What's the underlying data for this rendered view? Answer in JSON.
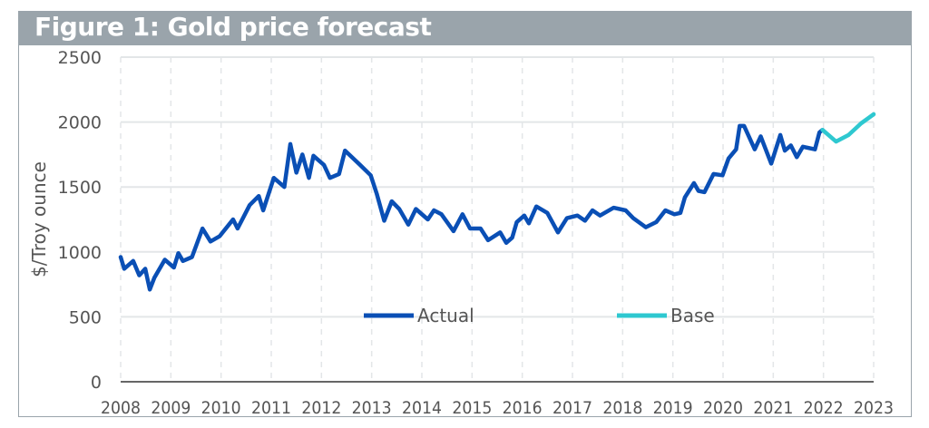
{
  "chart_data": {
    "type": "line",
    "title": "Figure 1: Gold price forecast",
    "xlabel": "",
    "ylabel": "$/Troy ounce",
    "xlim": [
      2008,
      2023
    ],
    "ylim": [
      0,
      2500
    ],
    "yticks": [
      0,
      500,
      1000,
      1500,
      2000,
      2500
    ],
    "xticks": [
      "2008",
      "2009",
      "2010",
      "2011",
      "2012",
      "2013",
      "2014",
      "2015",
      "2016",
      "2017",
      "2018",
      "2019",
      "2020",
      "2021",
      "2022",
      "2023"
    ],
    "grid": {
      "horizontal": "solid",
      "vertical": "dashed"
    },
    "legend_position": "bottom-center-inside",
    "series": [
      {
        "name": "Actual",
        "color": "#0a4fb5",
        "points": [
          [
            2008.0,
            960
          ],
          [
            2008.07,
            870
          ],
          [
            2008.25,
            930
          ],
          [
            2008.37,
            820
          ],
          [
            2008.49,
            870
          ],
          [
            2008.58,
            710
          ],
          [
            2008.67,
            800
          ],
          [
            2008.88,
            940
          ],
          [
            2009.06,
            880
          ],
          [
            2009.15,
            990
          ],
          [
            2009.24,
            930
          ],
          [
            2009.42,
            960
          ],
          [
            2009.63,
            1180
          ],
          [
            2009.79,
            1080
          ],
          [
            2009.97,
            1120
          ],
          [
            2010.24,
            1250
          ],
          [
            2010.33,
            1180
          ],
          [
            2010.57,
            1360
          ],
          [
            2010.75,
            1430
          ],
          [
            2010.84,
            1320
          ],
          [
            2011.05,
            1570
          ],
          [
            2011.26,
            1500
          ],
          [
            2011.38,
            1830
          ],
          [
            2011.5,
            1610
          ],
          [
            2011.62,
            1750
          ],
          [
            2011.75,
            1570
          ],
          [
            2011.84,
            1740
          ],
          [
            2012.05,
            1670
          ],
          [
            2012.17,
            1570
          ],
          [
            2012.35,
            1600
          ],
          [
            2012.47,
            1780
          ],
          [
            2012.77,
            1670
          ],
          [
            2012.98,
            1590
          ],
          [
            2013.1,
            1450
          ],
          [
            2013.25,
            1240
          ],
          [
            2013.4,
            1390
          ],
          [
            2013.55,
            1330
          ],
          [
            2013.73,
            1210
          ],
          [
            2013.88,
            1330
          ],
          [
            2014.12,
            1250
          ],
          [
            2014.24,
            1320
          ],
          [
            2014.39,
            1290
          ],
          [
            2014.63,
            1160
          ],
          [
            2014.81,
            1290
          ],
          [
            2014.96,
            1180
          ],
          [
            2015.17,
            1180
          ],
          [
            2015.32,
            1090
          ],
          [
            2015.56,
            1150
          ],
          [
            2015.68,
            1070
          ],
          [
            2015.8,
            1110
          ],
          [
            2015.89,
            1230
          ],
          [
            2016.04,
            1280
          ],
          [
            2016.13,
            1220
          ],
          [
            2016.28,
            1350
          ],
          [
            2016.5,
            1300
          ],
          [
            2016.71,
            1150
          ],
          [
            2016.89,
            1260
          ],
          [
            2017.1,
            1280
          ],
          [
            2017.25,
            1240
          ],
          [
            2017.4,
            1320
          ],
          [
            2017.55,
            1280
          ],
          [
            2017.82,
            1340
          ],
          [
            2018.06,
            1320
          ],
          [
            2018.21,
            1260
          ],
          [
            2018.46,
            1190
          ],
          [
            2018.67,
            1230
          ],
          [
            2018.85,
            1320
          ],
          [
            2019.03,
            1290
          ],
          [
            2019.15,
            1300
          ],
          [
            2019.24,
            1420
          ],
          [
            2019.42,
            1530
          ],
          [
            2019.51,
            1470
          ],
          [
            2019.63,
            1460
          ],
          [
            2019.81,
            1600
          ],
          [
            2019.99,
            1590
          ],
          [
            2020.11,
            1720
          ],
          [
            2020.26,
            1790
          ],
          [
            2020.33,
            1970
          ],
          [
            2020.42,
            1970
          ],
          [
            2020.63,
            1790
          ],
          [
            2020.75,
            1890
          ],
          [
            2020.96,
            1680
          ],
          [
            2021.14,
            1900
          ],
          [
            2021.23,
            1780
          ],
          [
            2021.35,
            1820
          ],
          [
            2021.47,
            1730
          ],
          [
            2021.59,
            1810
          ],
          [
            2021.83,
            1790
          ],
          [
            2021.92,
            1920
          ],
          [
            2021.98,
            1940
          ]
        ]
      },
      {
        "name": "Base",
        "color": "#2ec8d0",
        "points": [
          [
            2021.98,
            1940
          ],
          [
            2022.25,
            1850
          ],
          [
            2022.5,
            1900
          ],
          [
            2022.75,
            1990
          ],
          [
            2023.0,
            2060
          ]
        ]
      }
    ]
  }
}
